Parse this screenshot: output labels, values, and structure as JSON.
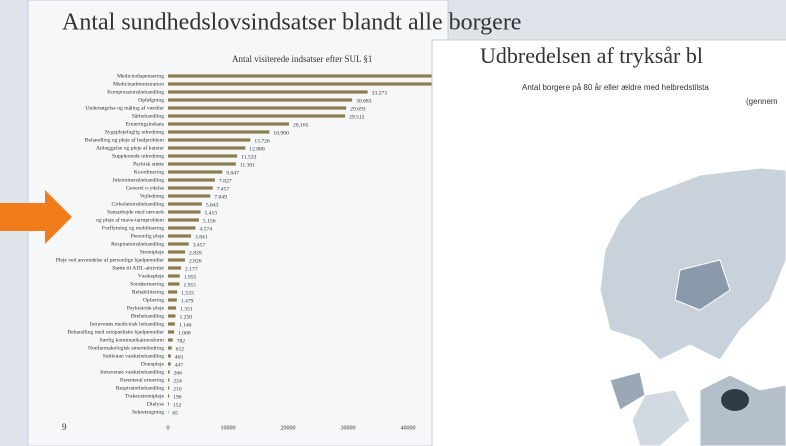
{
  "chart_data": {
    "type": "bar",
    "orientation": "horizontal",
    "title": "Antal sundhedslovsindsatser blandt alle borgere",
    "subtitle": "Antal visiterede indsatser efter SUL §1",
    "categories": [
      "Medicindispensering",
      "Medicinadministration",
      "Kompressionsbehandling",
      "Opfølgning",
      "Undersøgelse og måling af værdier",
      "Sårbehandling",
      "Ernæringsindsats",
      "Sygeplejefaglig udredning",
      "Behandling og pleje af hudproblem",
      "Anlæggelse og pleje af kateter",
      "Supplerende udredning",
      "Psykisk støtte",
      "Koordinering",
      "Inkontinensbehandling",
      "Generel o-ydelse",
      "Vejledning",
      "Cirkulationsbehandling",
      "Samarbejde med netværk",
      "og pleje af mave-tarmproblem",
      "Forflytning og mobilisering",
      "Personlig pleje",
      "Respirationsbehandling",
      "Stomipleje",
      "Pleje ved anvendelse af personlige hjælpemidler",
      "Støtte til ADL-aktivitet",
      "Væskepleje",
      "Sondeernæring",
      "Rehabilitering",
      "Oplæring",
      "Psykiatrisk pleje",
      "Ørebehandling",
      "Intravenøs medicinsk behandling",
      "Behandling med ortopædiske hjælpemidler",
      "Særlig kommunikationsform",
      "Nonfarmakologisk smertelindring",
      "Subkutan væskebehandling",
      "Drænpleje",
      "Intravenøs væskebehandling",
      "Parenteral ernæring",
      "Respiratorbehandling",
      "Trakeostomipleje",
      "Dialyse",
      "Sekretsugning"
    ],
    "values": [
      52000,
      50000,
      33273,
      30683,
      29693,
      29512,
      20165,
      16900,
      13726,
      12880,
      11533,
      11301,
      9047,
      7827,
      7457,
      7049,
      5643,
      5413,
      5156,
      4574,
      3841,
      3457,
      2839,
      2826,
      2177,
      1955,
      1915,
      1533,
      1479,
      1351,
      1250,
      1146,
      1008,
      782,
      612,
      463,
      447,
      266,
      224,
      210,
      196,
      152,
      65
    ],
    "value_labels": [
      null,
      null,
      "33.273",
      "30.683",
      "29.693",
      "29.512",
      "20.165",
      "16.900",
      "13.726",
      "12.880",
      "11.533",
      "11.301",
      "9.047",
      "7.827",
      "7.457",
      "7.049",
      "5.643",
      "5.413",
      "5.156",
      "4.574",
      "3.841",
      "3.457",
      "2.839",
      "2.826",
      "2.177",
      "1.955",
      "1.915",
      "1.533",
      "1.479",
      "1.351",
      "1.250",
      "1.146",
      "1.008",
      "782",
      "612",
      "463",
      "447",
      "266",
      "224",
      "210",
      "196",
      "152",
      "65"
    ],
    "color": "#8b7d4e",
    "xlim": [
      0,
      60000
    ],
    "xticks": [
      0,
      10000,
      20000,
      30000,
      40000
    ]
  },
  "page_number": "9",
  "overlay": {
    "title": "Udbredelsen af tryksår bl",
    "subtitle_lines": [
      "Antal borgere på 80 år eller ældre med helbredstilsta",
      "(gennem"
    ]
  }
}
